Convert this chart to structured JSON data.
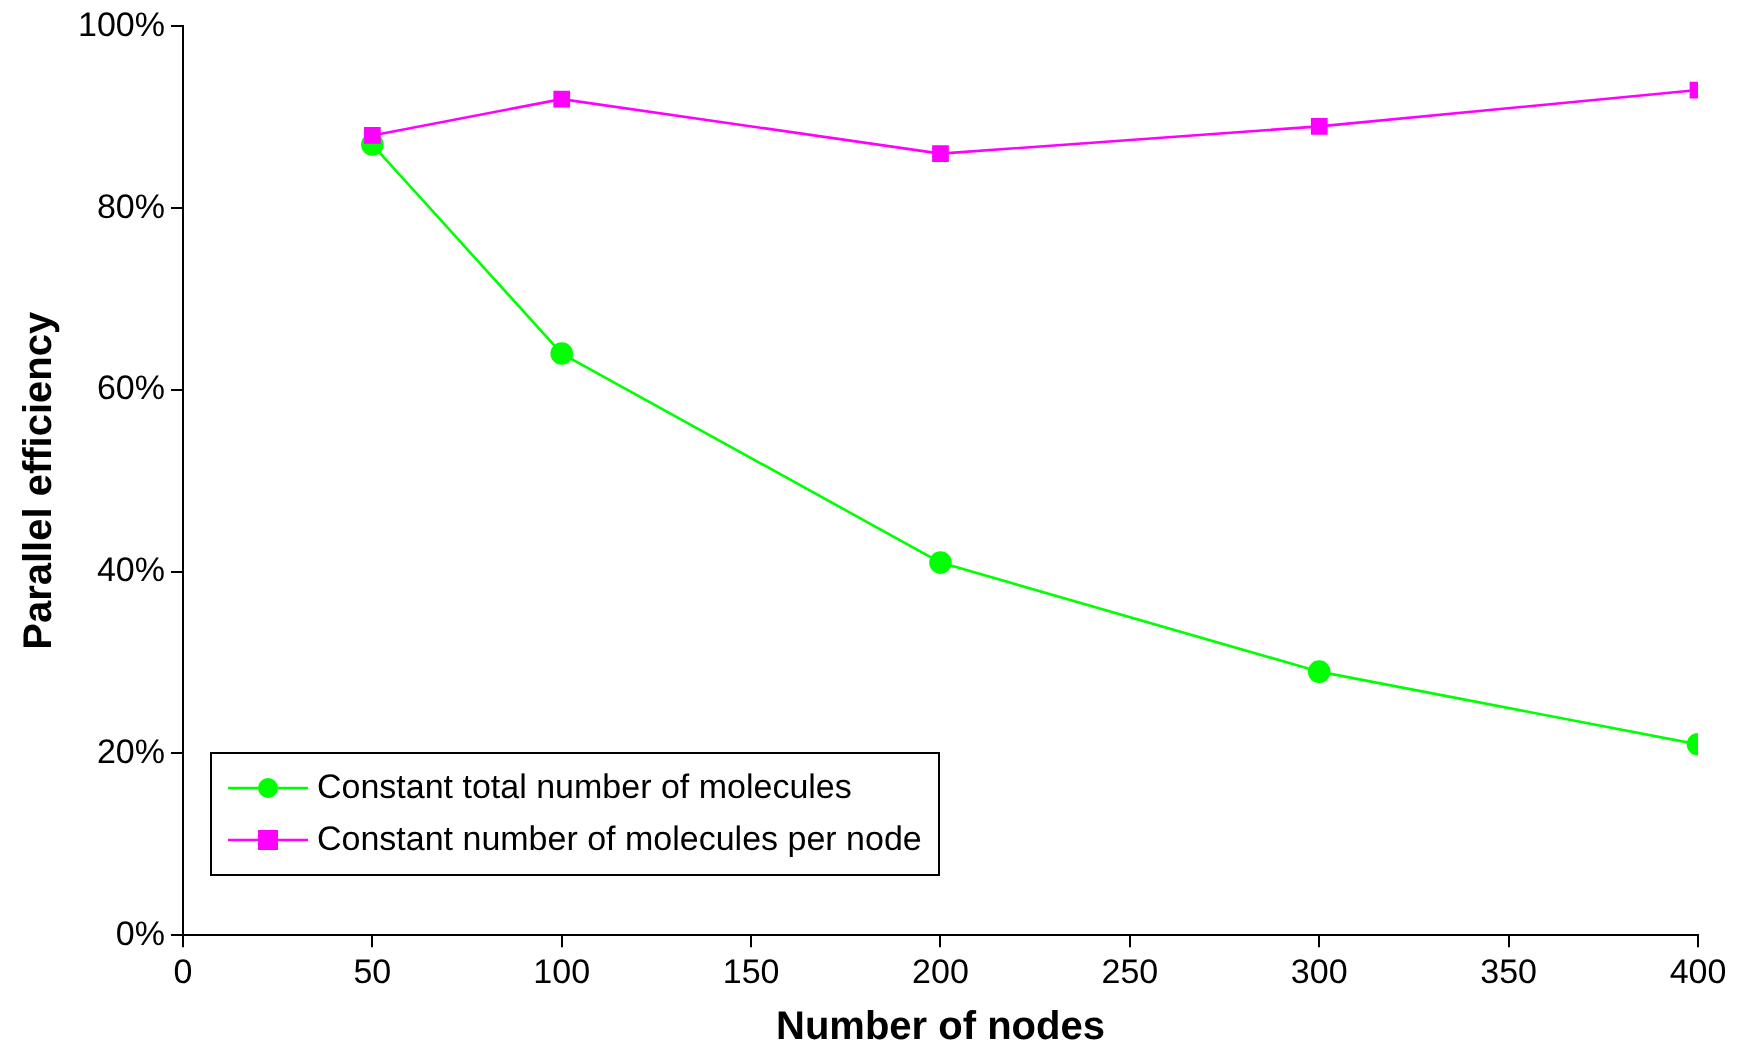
{
  "chart_data": {
    "type": "line",
    "xlabel": "Number of nodes",
    "ylabel": "Parallel efficiency",
    "xlim": [
      0,
      400
    ],
    "xticks": [
      0,
      50,
      100,
      150,
      200,
      250,
      300,
      350,
      400
    ],
    "ylim": [
      0,
      100
    ],
    "yticks": [
      {
        "value": 0,
        "label": "0%"
      },
      {
        "value": 20,
        "label": "20%"
      },
      {
        "value": 40,
        "label": "40%"
      },
      {
        "value": 60,
        "label": "60%"
      },
      {
        "value": 80,
        "label": "80%"
      },
      {
        "value": 100,
        "label": "100%"
      }
    ],
    "x": [
      50,
      100,
      200,
      300,
      400
    ],
    "series": [
      {
        "name": "Constant total number of molecules",
        "color": "#00ff00",
        "marker": "circle",
        "values": [
          87,
          64,
          41,
          29,
          21
        ]
      },
      {
        "name": "Constant number of molecules per node",
        "color": "#ff00ff",
        "marker": "square",
        "values": [
          88,
          92,
          86,
          89,
          93
        ]
      }
    ],
    "grid": false,
    "legend": "bottom left",
    "line_style": "solid"
  }
}
